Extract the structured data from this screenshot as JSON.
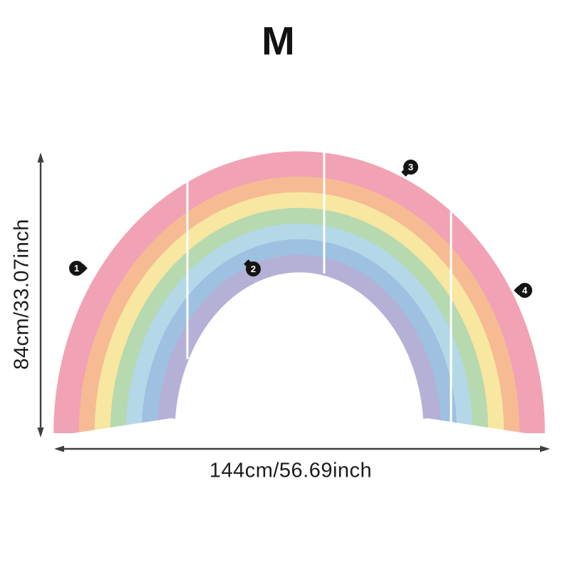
{
  "title": "M",
  "dimensions": {
    "height_label": "84cm/33.07inch",
    "width_label": "144cm/56.69inch"
  },
  "rainbow": {
    "band_colors": [
      {
        "name": "pink",
        "color": "#f1a2b5"
      },
      {
        "name": "orange",
        "color": "#f6bb93"
      },
      {
        "name": "yellow",
        "color": "#f7e7a0"
      },
      {
        "name": "green",
        "color": "#b6d9af"
      },
      {
        "name": "sky-blue",
        "color": "#b4d8e8"
      },
      {
        "name": "periwinkle",
        "color": "#9ec0e1"
      },
      {
        "name": "lavender",
        "color": "#b5b0d6"
      }
    ],
    "divider_color": "#ffffff"
  },
  "markers": [
    {
      "label": "1",
      "tail": "right"
    },
    {
      "label": "2",
      "tail": "top-left"
    },
    {
      "label": "3",
      "tail": "bottom-left"
    },
    {
      "label": "4",
      "tail": "left"
    }
  ],
  "colors": {
    "background": "#ffffff",
    "text": "#121212",
    "dimension_lines": "#3f3f3f",
    "marker_background": "#141414",
    "marker_number": "#ffffff"
  }
}
